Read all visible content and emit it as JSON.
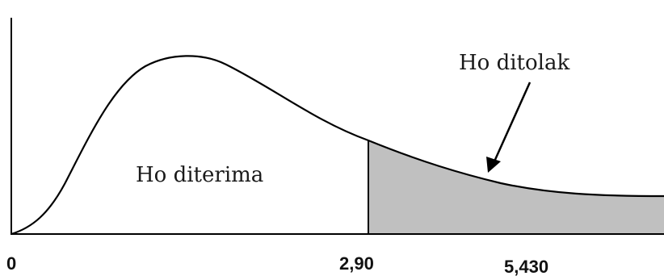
{
  "chart_data": {
    "type": "area",
    "x_ticks": [
      "0",
      "2,90",
      "5,430"
    ],
    "regions": [
      {
        "label": "Ho diterima",
        "from": 0,
        "to": 2.9,
        "fill": "#ffffff"
      },
      {
        "label": "Ho ditolak",
        "from": 2.9,
        "to": null,
        "fill": "#c0c0c0"
      }
    ],
    "critical_value": 2.9,
    "statistic_value": 5.43,
    "curve_color": "#000000",
    "shade_color": "#c0c0c0"
  }
}
